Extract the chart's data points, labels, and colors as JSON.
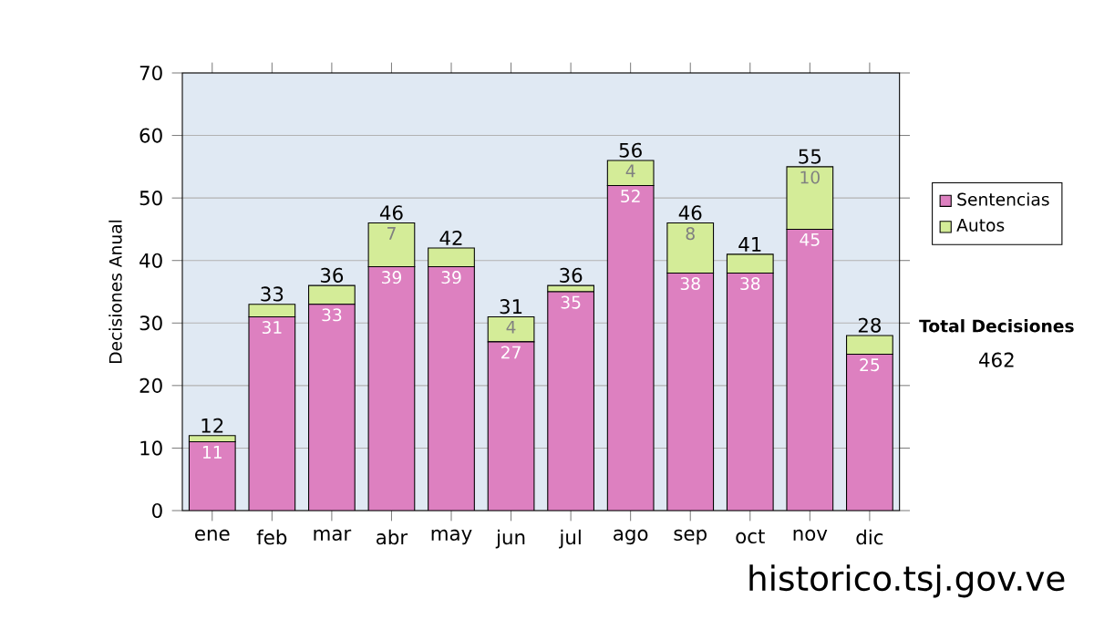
{
  "chart_data": {
    "type": "bar",
    "stacked": true,
    "ylabel": "Decisiones Anual",
    "categories": [
      "ene",
      "feb",
      "mar",
      "abr",
      "may",
      "jun",
      "jul",
      "ago",
      "sep",
      "oct",
      "nov",
      "dic"
    ],
    "series": [
      {
        "name": "Sentencias",
        "color": "#dd80c0",
        "values": [
          11,
          31,
          33,
          39,
          39,
          27,
          35,
          52,
          38,
          38,
          45,
          25
        ],
        "value_labels": [
          "11",
          "31",
          "33",
          "39",
          "39",
          "27",
          "35",
          "52",
          "38",
          "38",
          "45",
          "25"
        ]
      },
      {
        "name": "Autos",
        "color": "#d4ec98",
        "values": [
          1,
          2,
          3,
          7,
          3,
          4,
          1,
          4,
          8,
          3,
          10,
          3
        ],
        "value_labels": [
          null,
          null,
          null,
          "7",
          null,
          "4",
          null,
          "4",
          "8",
          null,
          "10",
          null
        ]
      }
    ],
    "totals": [
      "12",
      "33",
      "36",
      "46",
      "42",
      "31",
      "36",
      "56",
      "46",
      "41",
      "55",
      "28"
    ],
    "ylim": [
      0,
      70
    ],
    "yticks": [
      0,
      10,
      20,
      30,
      40,
      50,
      60,
      70
    ],
    "grid": "y",
    "legend": "right",
    "annotations": [
      "Total Decisiones",
      "462",
      "historico.tsj.gov.ve"
    ]
  }
}
